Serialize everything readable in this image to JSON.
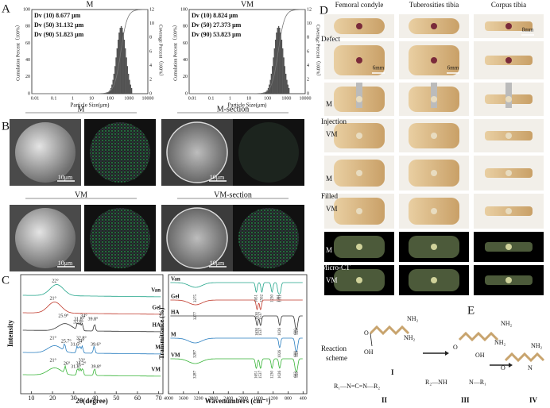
{
  "panel_a": {
    "label": "A",
    "charts": [
      {
        "title": "M",
        "stats": [
          "Dv (10) 8.677 μm",
          "Dv (50) 31.132 μm",
          "Dv (90) 51.823 μm"
        ],
        "y_label": "Cumulation Percent（100%）",
        "y2_label": "Coverage Percent（100%）",
        "x_label": "Particle Size(μm)",
        "yticks": [
          "100",
          "80",
          "60",
          "40",
          "20",
          "0"
        ],
        "y2ticks": [
          "12",
          "10",
          "8",
          "6",
          "4",
          "2",
          "0"
        ],
        "xticks": [
          "0.01",
          "0.1",
          "1",
          "10",
          "100",
          "1000",
          "10000"
        ]
      },
      {
        "title": "VM",
        "stats": [
          "Dv (10) 8.824 μm",
          "Dv (50) 27.373 μm",
          "Dv (90) 53.823 μm"
        ],
        "y_label": "Cumulation Percent（100%）",
        "y2_label": "Coverage Percent（100%）",
        "x_label": "Particle Size(μm)",
        "yticks": [
          "100",
          "80",
          "60",
          "40",
          "20",
          "0"
        ],
        "y2ticks": [
          "12",
          "10",
          "8",
          "6",
          "4",
          "2",
          "0"
        ],
        "xticks": [
          "0.01",
          "0.1",
          "1",
          "10",
          "100",
          "1000",
          "10000"
        ]
      }
    ]
  },
  "panel_b": {
    "label": "B",
    "groups": [
      {
        "title": "M",
        "scale_bar": "10μm"
      },
      {
        "title": "M-section",
        "scale_bar": "10μm"
      },
      {
        "title": "VM",
        "scale_bar": "10μm"
      },
      {
        "title": "VM-section",
        "scale_bar": "10μm"
      }
    ]
  },
  "panel_c": {
    "label": "C",
    "xrd": {
      "y_label": "Intensity",
      "x_label": "2θ(degree)",
      "xticks": [
        "10",
        "20",
        "30",
        "40",
        "50",
        "60",
        "70"
      ],
      "curves": [
        {
          "name": "Van",
          "peaks": [
            "22°"
          ]
        },
        {
          "name": "Gel",
          "peaks": [
            "21°"
          ]
        },
        {
          "name": "HA",
          "peaks": [
            "25.9°",
            "31.8°",
            "32.9°",
            "34°",
            "39.8°"
          ]
        },
        {
          "name": "M",
          "peaks": [
            "21°",
            "25.7°",
            "31.6°",
            "32.8°",
            "34°",
            "39.6°"
          ]
        },
        {
          "name": "VM",
          "peaks": [
            "21°",
            "26°",
            "31.8°",
            "33°",
            "34.2°",
            "39.8°"
          ]
        }
      ]
    },
    "ftir": {
      "y_label": "Transmittance (%)",
      "x_label": "Wavenumbers (cm⁻¹)",
      "xticks": [
        "4000",
        "3600",
        "3200",
        "2800",
        "2400",
        "2000",
        "1600",
        "1200",
        "800",
        "400"
      ],
      "curves": [
        {
          "name": "Van",
          "peaks": [
            "3275",
            "1651",
            "1502",
            "1230",
            "1061",
            "1011"
          ]
        },
        {
          "name": "Gel",
          "peaks": [
            "3277",
            "1630",
            "1537"
          ]
        },
        {
          "name": "HA",
          "peaks": [
            "1630",
            "1537",
            "1026",
            "600",
            "559"
          ]
        },
        {
          "name": "M",
          "peaks": [
            "3287",
            "1026",
            "600",
            "559"
          ]
        },
        {
          "name": "VM",
          "peaks": [
            "3287",
            "1651",
            "1537",
            "1230",
            "1026",
            "603",
            "559"
          ]
        }
      ]
    }
  },
  "panel_d": {
    "label": "D",
    "columns": [
      "Femoral condyle",
      "Tuberosities tibia",
      "Corpus tibia"
    ],
    "scale_bars": [
      "6mm",
      "6mm",
      "8mm"
    ],
    "sections": [
      {
        "title": "Defect"
      },
      {
        "title": "Injection",
        "top": "M",
        "bottom": "VM"
      },
      {
        "title": "Filled",
        "top": "M",
        "bottom": "VM"
      },
      {
        "title": "Micro-CT",
        "top": "M",
        "bottom": "VM"
      }
    ]
  },
  "panel_e": {
    "label": "E",
    "caption": [
      "Reaction",
      "scheme"
    ],
    "compounds": [
      {
        "id": "I",
        "atoms": [
          "NH₂",
          "NH₂",
          "O",
          "OH"
        ]
      },
      {
        "id": "II",
        "atoms": [
          "R₁—N=C=N—R₂"
        ]
      },
      {
        "id": "III",
        "atoms": [
          "NH₂",
          "NH₂",
          "O",
          "OH",
          "R₂—NH",
          "N—R₁"
        ]
      },
      {
        "id": "IV",
        "atoms": [
          "NH₂",
          "O",
          "N"
        ]
      }
    ]
  }
}
